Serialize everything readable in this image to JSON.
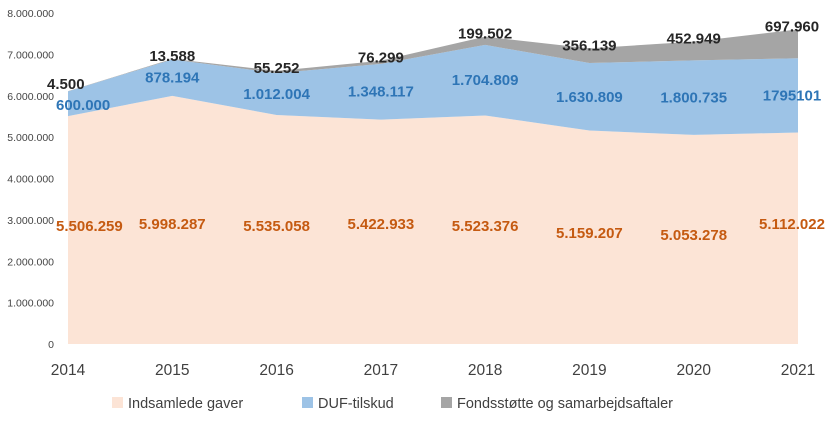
{
  "chart_data": {
    "type": "area",
    "stacked": true,
    "x": [
      "2014",
      "2015",
      "2016",
      "2017",
      "2018",
      "2019",
      "2020",
      "2021"
    ],
    "series": [
      {
        "name": "Indsamlede gaver",
        "values": [
          5506259,
          5998287,
          5535058,
          5422933,
          5523376,
          5159207,
          5053278,
          5112022
        ],
        "labels": [
          "5.506.259",
          "5.998.287",
          "5.535.058",
          "5.422.933",
          "5.523.376",
          "5.159.207",
          "5.053.278",
          "5.112.022"
        ],
        "color": "#FCE4D6",
        "label_color": "#C55A11"
      },
      {
        "name": "DUF-tilskud",
        "values": [
          600000,
          878194,
          1012004,
          1348117,
          1704809,
          1630809,
          1800735,
          1795101
        ],
        "labels": [
          "600.000",
          "878.194",
          "1.012.004",
          "1.348.117",
          "1.704.809",
          "1.630.809",
          "1.800.735",
          "1795101"
        ],
        "color": "#9DC3E6",
        "label_color": "#2E75B6"
      },
      {
        "name": "Fondsstøtte og samarbejdsaftaler",
        "values": [
          4500,
          13588,
          55252,
          76299,
          199502,
          356139,
          452949,
          697960
        ],
        "labels": [
          "4.500",
          "13.588",
          "55.252",
          "76.299",
          "199.502",
          "356.139",
          "452.949",
          "697.960"
        ],
        "color": "#A5A5A5",
        "label_color": "#262626"
      }
    ],
    "y_ticks": [
      "0",
      "1.000.000",
      "2.000.000",
      "3.000.000",
      "4.000.000",
      "5.000.000",
      "6.000.000",
      "7.000.000",
      "8.000.000"
    ],
    "ylim": [
      0,
      8000000
    ],
    "grid": false,
    "legend_position": "bottom",
    "title": "",
    "xlabel": "",
    "ylabel": ""
  }
}
